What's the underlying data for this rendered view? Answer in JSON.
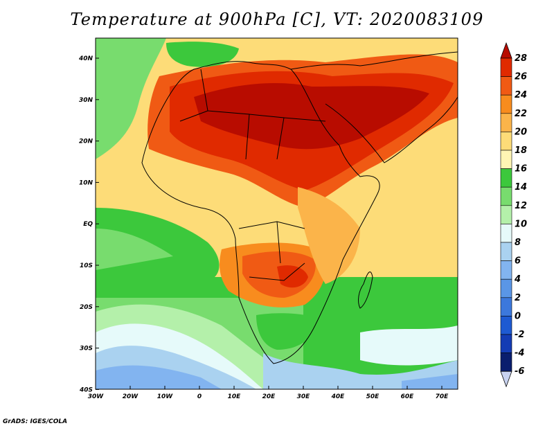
{
  "title": "Temperature at 900hPa [C], VT: 2020083109",
  "credit": "GrADS: IGES/COLA",
  "lat_labels": [
    "40N",
    "30N",
    "20N",
    "10N",
    "EQ",
    "10S",
    "20S",
    "30S",
    "40S"
  ],
  "lon_labels": [
    "30W",
    "20W",
    "10W",
    "0",
    "10E",
    "20E",
    "30E",
    "40E",
    "50E",
    "60E",
    "70E"
  ],
  "colorbar": {
    "labels": [
      "28",
      "26",
      "24",
      "22",
      "20",
      "18",
      "16",
      "14",
      "12",
      "10",
      "8",
      "6",
      "4",
      "2",
      "0",
      "-2",
      "-4",
      "-6"
    ],
    "colors": [
      "#b80c00",
      "#e02a00",
      "#f05a14",
      "#f88c1e",
      "#fbb44a",
      "#fddc78",
      "#fff5b4",
      "#3cc83c",
      "#78dc6e",
      "#b4f0aa",
      "#e6fafa",
      "#aad2f0",
      "#82b4f0",
      "#5a96e6",
      "#3c78dc",
      "#1e5ad2",
      "#143cb4",
      "#0a1e6e",
      "#c8d2f0"
    ]
  }
}
